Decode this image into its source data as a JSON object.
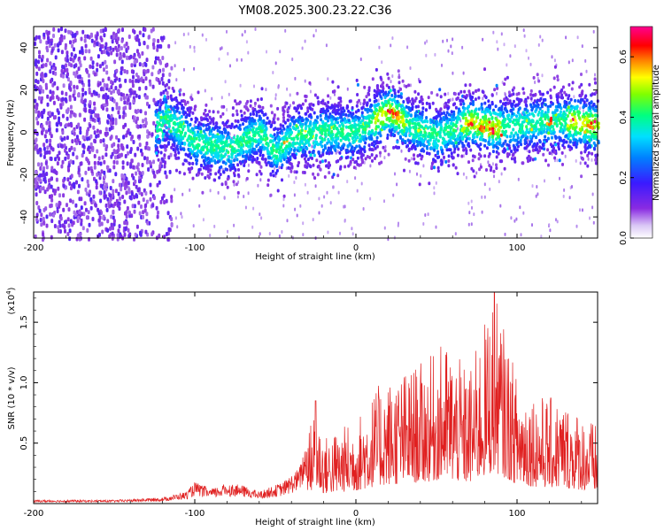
{
  "title": "YM08.2025.300.23.22.C36",
  "chart_data": [
    {
      "type": "heatmap",
      "name": "spectrogram",
      "title": "YM08.2025.300.23.22.C36",
      "xlabel": "Height of straight line (km)",
      "ylabel": "Frequency (Hz)",
      "xlim": [
        -200,
        150
      ],
      "ylim": [
        -50,
        50
      ],
      "xticks": [
        -200,
        -100,
        0,
        100
      ],
      "yticks": [
        40,
        20,
        0,
        -20,
        -40
      ],
      "xtick_labels": [
        "-200",
        "-100",
        "0",
        "100"
      ],
      "ytick_labels": [
        "40",
        "20",
        "0",
        "-20",
        "-40"
      ],
      "colorbar": {
        "label": "Normalized spectral amplitude",
        "range": [
          0.0,
          0.7
        ],
        "ticks": [
          0.0,
          0.2,
          0.4,
          0.6
        ],
        "tick_labels": [
          "0.0",
          "0.2",
          "0.4",
          "0.6"
        ],
        "colormap": "rainbow (purple-blue-cyan-green-yellow-red-magenta)"
      },
      "features": {
        "noise_region_x": [
          -200,
          -115
        ],
        "ridge_center_hz": [
          [
            -120,
            8
          ],
          [
            -100,
            -5
          ],
          [
            -80,
            -8
          ],
          [
            -60,
            0
          ],
          [
            -50,
            -10
          ],
          [
            -40,
            -2
          ],
          [
            -20,
            0
          ],
          [
            0,
            0
          ],
          [
            20,
            10
          ],
          [
            35,
            2
          ],
          [
            50,
            -2
          ],
          [
            70,
            5
          ],
          [
            85,
            2
          ],
          [
            100,
            3
          ],
          [
            115,
            5
          ],
          [
            135,
            5
          ],
          [
            150,
            3
          ]
        ]
      }
    },
    {
      "type": "line",
      "name": "snr",
      "xlabel": "Height of straight line (km)",
      "ylabel": "SNR (10 * v/v)",
      "scale_label": "(x10",
      "scale_exponent": "4",
      "scale_close": ")",
      "xlim": [
        -200,
        150
      ],
      "ylim": [
        0,
        1.75
      ],
      "xticks": [
        -200,
        -100,
        0,
        100
      ],
      "yticks": [
        0.5,
        1.0,
        1.5
      ],
      "xtick_labels": [
        "-200",
        "-100",
        "0",
        "100"
      ],
      "ytick_labels": [
        "0.5",
        "1.0",
        "1.5"
      ],
      "color": "#e02020",
      "envelope": [
        {
          "x": -200,
          "max": 0.03
        },
        {
          "x": -150,
          "max": 0.03
        },
        {
          "x": -120,
          "max": 0.05
        },
        {
          "x": -105,
          "max": 0.1
        },
        {
          "x": -100,
          "max": 0.18
        },
        {
          "x": -90,
          "max": 0.12
        },
        {
          "x": -80,
          "max": 0.17
        },
        {
          "x": -70,
          "max": 0.15
        },
        {
          "x": -60,
          "max": 0.1
        },
        {
          "x": -45,
          "max": 0.18
        },
        {
          "x": -35,
          "max": 0.3
        },
        {
          "x": -25,
          "max": 0.85
        },
        {
          "x": -20,
          "max": 0.55
        },
        {
          "x": 0,
          "max": 0.7
        },
        {
          "x": 15,
          "max": 1.0
        },
        {
          "x": 30,
          "max": 1.1
        },
        {
          "x": 45,
          "max": 1.2
        },
        {
          "x": 55,
          "max": 1.35
        },
        {
          "x": 70,
          "max": 1.1
        },
        {
          "x": 86,
          "max": 1.75
        },
        {
          "x": 100,
          "max": 1.05
        },
        {
          "x": 115,
          "max": 0.9
        },
        {
          "x": 130,
          "max": 0.85
        },
        {
          "x": 150,
          "max": 0.65
        }
      ]
    }
  ]
}
